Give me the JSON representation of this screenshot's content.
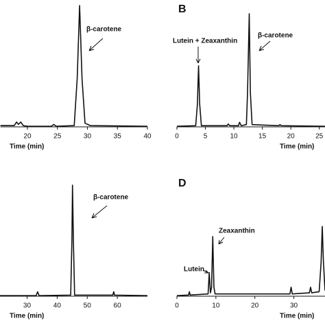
{
  "chart_data": [
    {
      "type": "line",
      "xlabel": "Time (min)",
      "color": "#111111",
      "xlim": [
        15.5,
        40
      ],
      "ylim": [
        0,
        100
      ],
      "xticks": [
        20,
        25,
        30,
        35,
        40
      ],
      "x": [
        15.5,
        17.8,
        18.2,
        18.5,
        18.9,
        19.3,
        20,
        24,
        24.4,
        24.8,
        27.8,
        28.3,
        28.7,
        29.1,
        29.6,
        30.5,
        40
      ],
      "values": [
        1,
        1,
        4,
        2,
        4,
        1,
        0.5,
        0.5,
        2,
        0.5,
        1,
        40,
        100,
        40,
        3,
        1,
        0.5
      ],
      "annotations": [
        "β-carotene"
      ]
    },
    {
      "type": "line",
      "panel_label": "B",
      "xlabel": "Time (min)",
      "color": "#111111",
      "xlim": [
        0,
        26
      ],
      "ylim": [
        0,
        100
      ],
      "xticks": [
        0,
        5,
        10,
        15,
        20,
        25
      ],
      "x": [
        0,
        3.3,
        3.6,
        3.8,
        4.0,
        4.3,
        8.8,
        9.0,
        9.3,
        10.8,
        11.0,
        11.3,
        12.2,
        12.4,
        12.7,
        12.9,
        13.2,
        17.9,
        18.1,
        18.3,
        26
      ],
      "values": [
        0.5,
        1,
        20,
        54,
        20,
        1,
        1,
        2.5,
        1,
        1,
        4,
        1,
        2,
        30,
        100,
        30,
        2,
        1,
        2,
        1,
        0.5
      ],
      "annotations": [
        "Lutein + Zeaxanthin",
        "β-carotene"
      ]
    },
    {
      "type": "line",
      "xlabel": "Time (min)",
      "color": "#111111",
      "xlim": [
        21,
        70
      ],
      "ylim": [
        0,
        100
      ],
      "xticks": [
        30,
        40,
        50,
        60
      ],
      "x": [
        21,
        33,
        33.5,
        34,
        44.5,
        44.9,
        45.1,
        45.4,
        45.8,
        58.5,
        58.8,
        59.1,
        70
      ],
      "values": [
        0.5,
        0.5,
        4,
        0.5,
        1,
        50,
        100,
        50,
        1,
        1,
        4,
        1,
        0.5
      ],
      "annotations": [
        "β-carotene"
      ]
    },
    {
      "type": "line",
      "panel_label": "D",
      "xlabel": "Time (min)",
      "color": "#111111",
      "xlim": [
        0,
        38
      ],
      "ylim": [
        0,
        100
      ],
      "xticks": [
        0,
        10,
        20,
        30
      ],
      "x": [
        0,
        3,
        3.2,
        3.4,
        8,
        8.3,
        8.6,
        8.9,
        9.2,
        9.5,
        9.8,
        16,
        22,
        29,
        29.3,
        29.6,
        34,
        34.3,
        34.6,
        36.5,
        37,
        37.3,
        37.6,
        38
      ],
      "values": [
        0.5,
        1,
        4,
        1,
        2,
        21,
        3,
        8,
        53,
        8,
        2,
        2,
        2,
        2,
        8,
        2,
        3,
        8,
        3,
        4,
        30,
        62,
        30,
        5
      ],
      "annotations": [
        "Zeaxanthin",
        "Lutein"
      ]
    }
  ]
}
